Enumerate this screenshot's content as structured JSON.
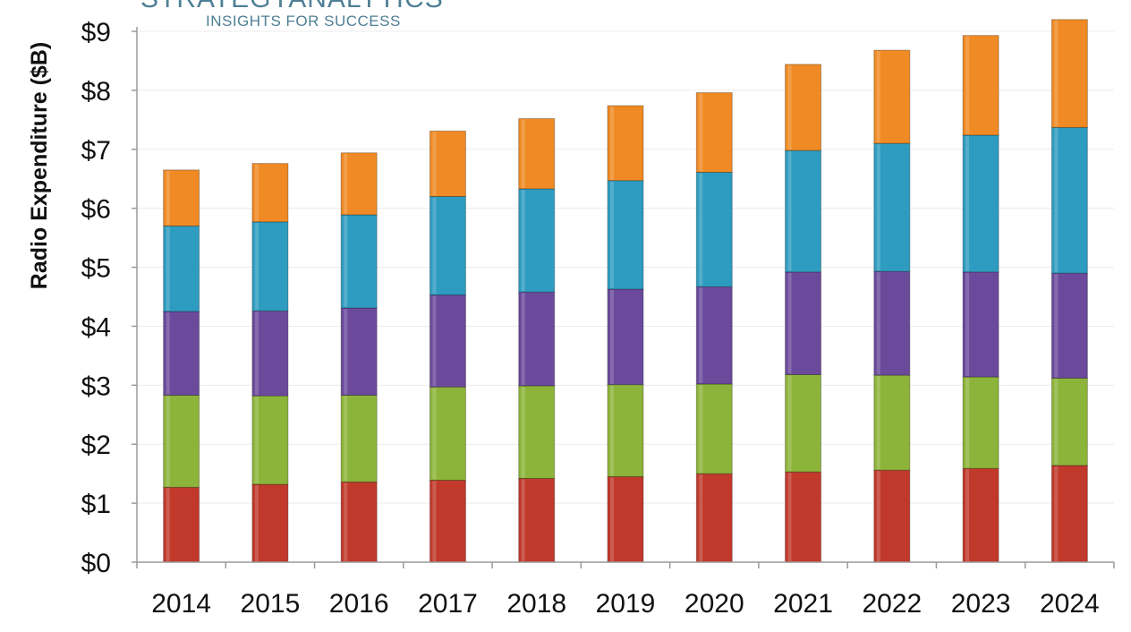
{
  "brand": {
    "name": "STRATEGYANALYTICS",
    "tagline": "INSIGHTS FOR SUCCESS"
  },
  "chart_data": {
    "type": "bar",
    "stacked": true,
    "title": "",
    "xlabel": "",
    "ylabel": "Radio Expenditure ($B)",
    "ylim": [
      0,
      9
    ],
    "yticks": [
      "$0",
      "$1",
      "$2",
      "$3",
      "$4",
      "$5",
      "$6",
      "$7",
      "$8",
      "$9"
    ],
    "grid": true,
    "categories": [
      "2014",
      "2015",
      "2016",
      "2017",
      "2018",
      "2019",
      "2020",
      "2021",
      "2022",
      "2023",
      "2024"
    ],
    "series": [
      {
        "color": "#c0392b",
        "values": [
          1.27,
          1.32,
          1.36,
          1.39,
          1.42,
          1.45,
          1.5,
          1.53,
          1.56,
          1.59,
          1.64
        ]
      },
      {
        "color": "#8db43a",
        "values": [
          1.56,
          1.5,
          1.47,
          1.58,
          1.57,
          1.56,
          1.52,
          1.65,
          1.61,
          1.55,
          1.48
        ]
      },
      {
        "color": "#6b4a9c",
        "values": [
          1.42,
          1.44,
          1.48,
          1.56,
          1.59,
          1.62,
          1.65,
          1.74,
          1.76,
          1.78,
          1.78
        ]
      },
      {
        "color": "#2e9cc0",
        "values": [
          1.45,
          1.51,
          1.58,
          1.67,
          1.75,
          1.84,
          1.94,
          2.06,
          2.17,
          2.32,
          2.47
        ]
      },
      {
        "color": "#f08a24",
        "values": [
          0.95,
          0.99,
          1.05,
          1.11,
          1.19,
          1.27,
          1.35,
          1.46,
          1.58,
          1.69,
          1.83
        ]
      }
    ]
  }
}
